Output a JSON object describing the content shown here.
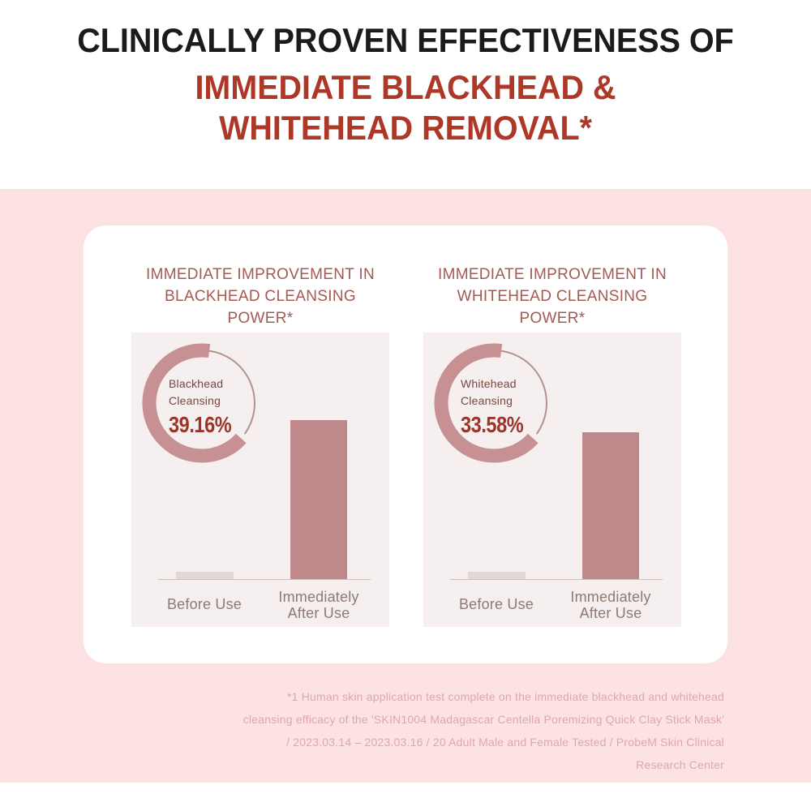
{
  "title": {
    "line1": "CLINICALLY PROVEN EFFECTIVENESS OF",
    "line2": "IMMEDIATE BLACKHEAD &",
    "line3": "WHITEHEAD REMOVAL*"
  },
  "panels": [
    {
      "heading_line1": "IMMEDIATE IMPROVEMENT IN",
      "heading_line2": "BLACKHEAD CLEANSING POWER*",
      "gauge_label_line1": "Blackhead",
      "gauge_label_line2": "Cleansing",
      "gauge_value": "39.16%",
      "before_label": "Before Use",
      "after_label_line1": "Immediately",
      "after_label_line2": "After Use"
    },
    {
      "heading_line1": "IMMEDIATE IMPROVEMENT IN",
      "heading_line2": "WHITEHEAD CLEANSING POWER*",
      "gauge_label_line1": "Whitehead",
      "gauge_label_line2": "Cleansing",
      "gauge_value": "33.58%",
      "before_label": "Before Use",
      "after_label_line1": "Immediately",
      "after_label_line2": "After Use"
    }
  ],
  "footnote": "*1 Human skin application test complete on the immediate blackhead and whitehead\ncleansing efficacy of the 'SKIN1004 Madagascar Centella Poremizing Quick Clay Stick Mask'\n/ 2023.03.14 – 2023.03.16 / 20 Adult Male and Female Tested / ProbeM Skin Clinical\nResearch Center",
  "chart_data": [
    {
      "type": "bar",
      "title": "IMMEDIATE IMPROVEMENT IN BLACKHEAD CLEANSING POWER*",
      "categories": [
        "Before Use",
        "Immediately After Use"
      ],
      "values": [
        4.6,
        100
      ],
      "values_note": "bars carry no printed numbers; values are relative heights estimated from pixels (after-use bar = 100)",
      "gauge": {
        "label": "Blackhead Cleansing",
        "value_pct": 39.16
      },
      "ylabel": "",
      "xlabel": "",
      "grid": false,
      "legend": false
    },
    {
      "type": "bar",
      "title": "IMMEDIATE IMPROVEMENT IN WHITEHEAD CLEANSING POWER*",
      "categories": [
        "Before Use",
        "Immediately After Use"
      ],
      "values": [
        4.6,
        92.3
      ],
      "values_note": "bars carry no printed numbers; values are relative heights estimated from pixels (left chart after-use bar = 100)",
      "gauge": {
        "label": "Whitehead Cleansing",
        "value_pct": 33.58
      },
      "ylabel": "",
      "xlabel": "",
      "grid": false,
      "legend": false
    }
  ],
  "colors": {
    "title_text": "#1b1b1b",
    "accent_red": "#ad3827",
    "page_pink": "#fce2e3",
    "panel_bg": "#f5f0ef",
    "heading": "#a25b53",
    "gauge_label": "#7a453f",
    "gauge_value": "#9c3429",
    "arc_thick": "#c79093",
    "arc_thin": "#b59290",
    "bar_after": "#bf888b",
    "bar_before": "#e5d6d9",
    "baseline": "#cbbfbb",
    "axis_label": "#8d7a75",
    "footnote": "#dda7ac"
  }
}
